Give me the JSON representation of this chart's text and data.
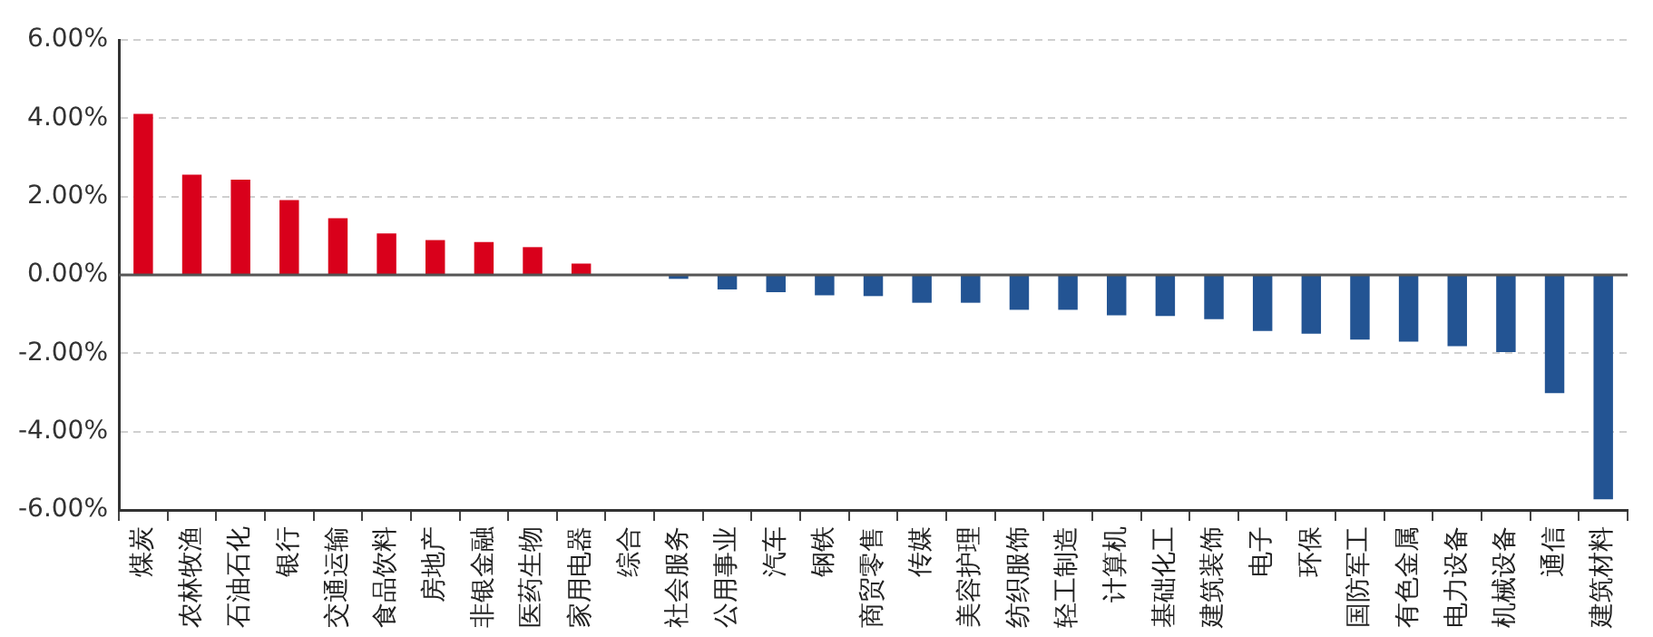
{
  "chart_data": {
    "type": "bar",
    "categories": [
      "煤炭",
      "农林牧渔",
      "石油石化",
      "银行",
      "交通运输",
      "食品饮料",
      "房地产",
      "非银金融",
      "医药生物",
      "家用电器",
      "综合",
      "社会服务",
      "公用事业",
      "汽车",
      "钢铁",
      "商贸零售",
      "传媒",
      "美容护理",
      "纺织服饰",
      "轻工制造",
      "计算机",
      "基础化工",
      "建筑装饰",
      "电子",
      "环保",
      "国防军工",
      "有色金属",
      "电力设备",
      "机械设备",
      "通信",
      "建筑材料"
    ],
    "values": [
      4.11,
      2.56,
      2.43,
      1.91,
      1.45,
      1.06,
      0.89,
      0.84,
      0.71,
      0.29,
      0,
      -0.1,
      -0.37,
      -0.44,
      -0.52,
      -0.54,
      -0.71,
      -0.71,
      -0.89,
      -0.89,
      -1.03,
      -1.05,
      -1.13,
      -1.43,
      -1.5,
      -1.65,
      -1.7,
      -1.82,
      -1.97,
      -3.02,
      -5.73
    ],
    "colors": [
      "#d9001b",
      "#d9001b",
      "#d9001b",
      "#d9001b",
      "#d9001b",
      "#d9001b",
      "#d9001b",
      "#d9001b",
      "#d9001b",
      "#d9001b",
      "#235493",
      "#235493",
      "#235493",
      "#235493",
      "#235493",
      "#235493",
      "#235493",
      "#235493",
      "#235493",
      "#235493",
      "#235493",
      "#235493",
      "#235493",
      "#235493",
      "#235493",
      "#235493",
      "#235493",
      "#235493",
      "#235493",
      "#235493",
      "#235493"
    ],
    "ylim": [
      -6,
      6
    ],
    "yticks": [
      {
        "value": -6,
        "label": "-6.00%"
      },
      {
        "value": -4,
        "label": "-4.00%"
      },
      {
        "value": -2,
        "label": "-2.00%"
      },
      {
        "value": 0,
        "label": "0.00%"
      },
      {
        "value": 2,
        "label": "2.00%"
      },
      {
        "value": 4,
        "label": "4.00%"
      },
      {
        "value": 6,
        "label": "6.00%"
      }
    ],
    "grid": "y",
    "legend": false
  }
}
